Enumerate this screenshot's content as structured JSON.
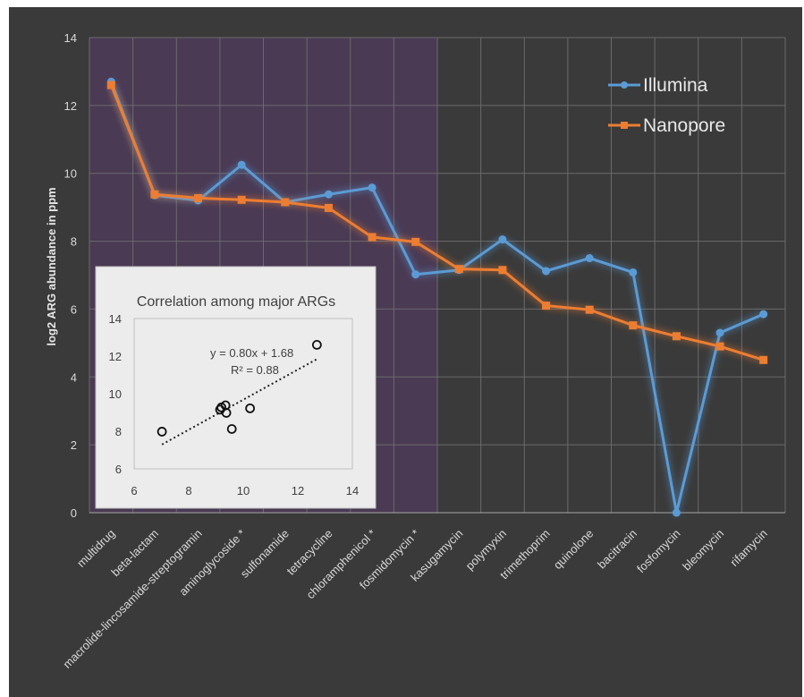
{
  "chart_data": [
    {
      "type": "line",
      "title": "",
      "xlabel": "",
      "ylabel": "log2 ARG abundance in ppm",
      "ylim": [
        0,
        14
      ],
      "yticks": [
        0,
        2,
        4,
        6,
        8,
        10,
        12,
        14
      ],
      "grid": true,
      "legend_position": "top-right",
      "highlight_region": {
        "from_category": "multidrug",
        "to_category": "fosmidomycin *",
        "color": "#4a3a54"
      },
      "categories": [
        "multidrug",
        "beta-lactam",
        "macrolide-lincosamide-streptogramin",
        "aminoglycoside *",
        "sulfonamide",
        "tetracycline",
        "chloramphenicol *",
        "fosmidomycin *",
        "kasugamycin",
        "polymyxin",
        "trimethoprim",
        "quinolone",
        "bacitracin",
        "fosfomycin",
        "bleomycin",
        "rifamycin"
      ],
      "series": [
        {
          "name": "Illumina",
          "color": "#5b9bd5",
          "marker": "circle",
          "values": [
            12.7,
            9.35,
            9.2,
            10.25,
            9.15,
            9.38,
            9.58,
            7.02,
            7.15,
            8.05,
            7.12,
            7.5,
            7.08,
            0.0,
            5.3,
            5.85
          ]
        },
        {
          "name": "Nanopore",
          "color": "#ed7d31",
          "marker": "square",
          "values": [
            12.6,
            9.38,
            9.27,
            9.22,
            9.15,
            8.98,
            8.12,
            7.98,
            7.18,
            7.15,
            6.1,
            5.98,
            5.52,
            5.2,
            4.9,
            4.5
          ]
        }
      ]
    },
    {
      "type": "scatter",
      "title": "Correlation among major ARGs",
      "xlabel": "",
      "ylabel": "",
      "xlim": [
        6,
        14
      ],
      "ylim": [
        6,
        14
      ],
      "xticks": [
        6,
        8,
        10,
        12,
        14
      ],
      "yticks": [
        6,
        8,
        10,
        12,
        14
      ],
      "points": [
        {
          "x": 7.02,
          "y": 7.98
        },
        {
          "x": 9.15,
          "y": 9.15
        },
        {
          "x": 9.2,
          "y": 9.27
        },
        {
          "x": 9.35,
          "y": 9.38
        },
        {
          "x": 9.38,
          "y": 8.98
        },
        {
          "x": 9.58,
          "y": 8.12
        },
        {
          "x": 10.25,
          "y": 9.22
        },
        {
          "x": 12.7,
          "y": 12.6
        }
      ],
      "trendline": {
        "slope": 0.8,
        "intercept": 1.68,
        "style": "dotted",
        "x_range": [
          7.02,
          12.7
        ]
      },
      "equation": "y = 0.80x + 1.68",
      "r_squared": "R² = 0.88"
    }
  ]
}
